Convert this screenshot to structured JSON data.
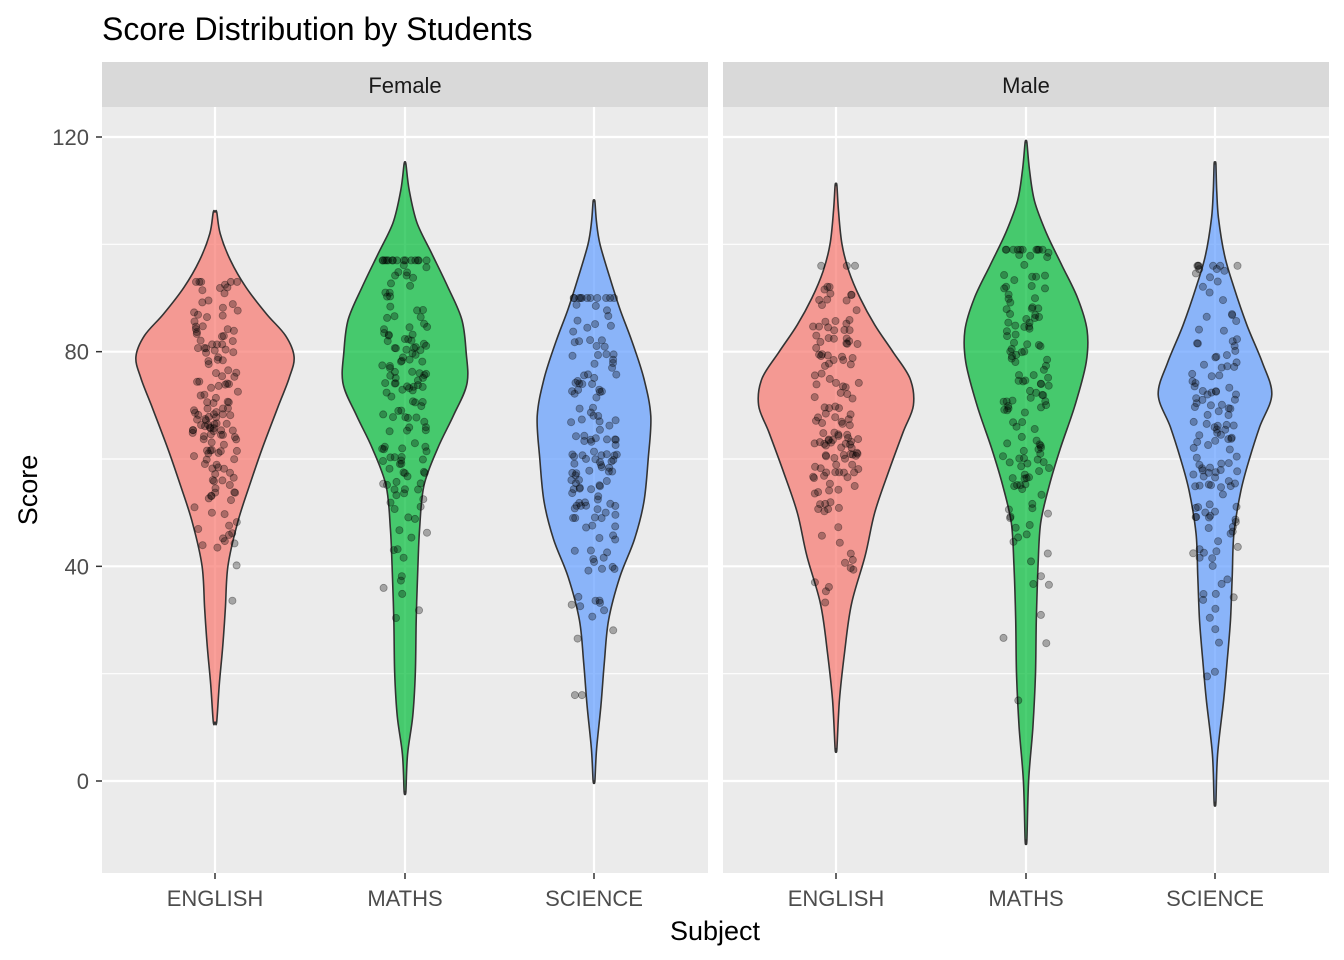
{
  "chart_data": {
    "type": "violin",
    "title": "Score Distribution by Students",
    "xlabel": "Subject",
    "ylabel": "Score",
    "ylim": [
      -17,
      130
    ],
    "y_ticks": [
      0,
      40,
      80,
      120
    ],
    "y_tick_labels": [
      "0",
      "40",
      "80",
      "120"
    ],
    "categories": [
      "ENGLISH",
      "MATHS",
      "SCIENCE"
    ],
    "facets": [
      "Female",
      "Male"
    ],
    "fill_colors": {
      "ENGLISH": "#F8766D",
      "MATHS": "#00BA38",
      "SCIENCE": "#619CFF"
    },
    "fill_opacity": 0.7,
    "grid": true,
    "legend": "none",
    "violins": [
      {
        "facet": "Female",
        "subject": "ENGLISH",
        "min": 11,
        "max": 106,
        "profile": [
          [
            11,
            0.02
          ],
          [
            18,
            0.05
          ],
          [
            25,
            0.09
          ],
          [
            32,
            0.12
          ],
          [
            40,
            0.15
          ],
          [
            48,
            0.26
          ],
          [
            55,
            0.4
          ],
          [
            62,
            0.55
          ],
          [
            70,
            0.74
          ],
          [
            75,
            0.86
          ],
          [
            79,
            0.92
          ],
          [
            83,
            0.82
          ],
          [
            87,
            0.6
          ],
          [
            92,
            0.36
          ],
          [
            97,
            0.18
          ],
          [
            102,
            0.06
          ],
          [
            106,
            0.02
          ]
        ]
      },
      {
        "facet": "Female",
        "subject": "MATHS",
        "min": -2,
        "max": 115,
        "profile": [
          [
            -2,
            0.01
          ],
          [
            5,
            0.03
          ],
          [
            12,
            0.09
          ],
          [
            20,
            0.12
          ],
          [
            30,
            0.13
          ],
          [
            40,
            0.15
          ],
          [
            47,
            0.17
          ],
          [
            55,
            0.22
          ],
          [
            62,
            0.38
          ],
          [
            68,
            0.56
          ],
          [
            74,
            0.72
          ],
          [
            80,
            0.71
          ],
          [
            86,
            0.66
          ],
          [
            92,
            0.5
          ],
          [
            98,
            0.32
          ],
          [
            104,
            0.14
          ],
          [
            110,
            0.05
          ],
          [
            115,
            0.01
          ]
        ]
      },
      {
        "facet": "Female",
        "subject": "SCIENCE",
        "min": 0,
        "max": 108,
        "profile": [
          [
            0,
            0.01
          ],
          [
            6,
            0.03
          ],
          [
            14,
            0.08
          ],
          [
            22,
            0.12
          ],
          [
            30,
            0.17
          ],
          [
            38,
            0.3
          ],
          [
            45,
            0.47
          ],
          [
            52,
            0.58
          ],
          [
            60,
            0.63
          ],
          [
            68,
            0.66
          ],
          [
            75,
            0.58
          ],
          [
            82,
            0.44
          ],
          [
            88,
            0.3
          ],
          [
            94,
            0.18
          ],
          [
            100,
            0.07
          ],
          [
            104,
            0.03
          ],
          [
            108,
            0.01
          ]
        ]
      },
      {
        "facet": "Male",
        "subject": "ENGLISH",
        "min": 6,
        "max": 111,
        "profile": [
          [
            6,
            0.01
          ],
          [
            15,
            0.04
          ],
          [
            24,
            0.1
          ],
          [
            33,
            0.18
          ],
          [
            42,
            0.34
          ],
          [
            50,
            0.45
          ],
          [
            58,
            0.62
          ],
          [
            65,
            0.78
          ],
          [
            70,
            0.9
          ],
          [
            75,
            0.86
          ],
          [
            80,
            0.66
          ],
          [
            85,
            0.45
          ],
          [
            90,
            0.28
          ],
          [
            95,
            0.15
          ],
          [
            100,
            0.07
          ],
          [
            106,
            0.03
          ],
          [
            111,
            0.01
          ]
        ]
      },
      {
        "facet": "Male",
        "subject": "MATHS",
        "min": -11,
        "max": 119,
        "profile": [
          [
            -11,
            0.01
          ],
          [
            0,
            0.03
          ],
          [
            10,
            0.08
          ],
          [
            20,
            0.11
          ],
          [
            30,
            0.12
          ],
          [
            40,
            0.14
          ],
          [
            48,
            0.17
          ],
          [
            55,
            0.27
          ],
          [
            62,
            0.4
          ],
          [
            70,
            0.57
          ],
          [
            78,
            0.7
          ],
          [
            84,
            0.71
          ],
          [
            90,
            0.6
          ],
          [
            96,
            0.42
          ],
          [
            102,
            0.24
          ],
          [
            108,
            0.1
          ],
          [
            114,
            0.04
          ],
          [
            119,
            0.01
          ]
        ]
      },
      {
        "facet": "Male",
        "subject": "SCIENCE",
        "min": -4,
        "max": 115,
        "profile": [
          [
            -4,
            0.01
          ],
          [
            5,
            0.03
          ],
          [
            15,
            0.1
          ],
          [
            22,
            0.14
          ],
          [
            30,
            0.18
          ],
          [
            38,
            0.2
          ],
          [
            46,
            0.22
          ],
          [
            54,
            0.3
          ],
          [
            60,
            0.4
          ],
          [
            66,
            0.52
          ],
          [
            72,
            0.66
          ],
          [
            78,
            0.55
          ],
          [
            85,
            0.37
          ],
          [
            92,
            0.22
          ],
          [
            98,
            0.11
          ],
          [
            105,
            0.04
          ],
          [
            110,
            0.02
          ],
          [
            115,
            0.01
          ]
        ]
      }
    ],
    "points": [
      {
        "facet": "Female",
        "subject": "ENGLISH",
        "n": 150,
        "mean": 70,
        "sd": 15,
        "range": [
          24,
          93
        ]
      },
      {
        "facet": "Female",
        "subject": "MATHS",
        "n": 150,
        "mean": 74,
        "sd": 18,
        "range": [
          20,
          97
        ]
      },
      {
        "facet": "Female",
        "subject": "SCIENCE",
        "n": 150,
        "mean": 64,
        "sd": 17,
        "range": [
          16,
          90
        ]
      },
      {
        "facet": "Male",
        "subject": "ENGLISH",
        "n": 140,
        "mean": 66,
        "sd": 16,
        "range": [
          21,
          96
        ]
      },
      {
        "facet": "Male",
        "subject": "MATHS",
        "n": 140,
        "mean": 72,
        "sd": 20,
        "range": [
          9,
          99
        ]
      },
      {
        "facet": "Male",
        "subject": "SCIENCE",
        "n": 140,
        "mean": 62,
        "sd": 20,
        "range": [
          15,
          96
        ]
      }
    ]
  }
}
